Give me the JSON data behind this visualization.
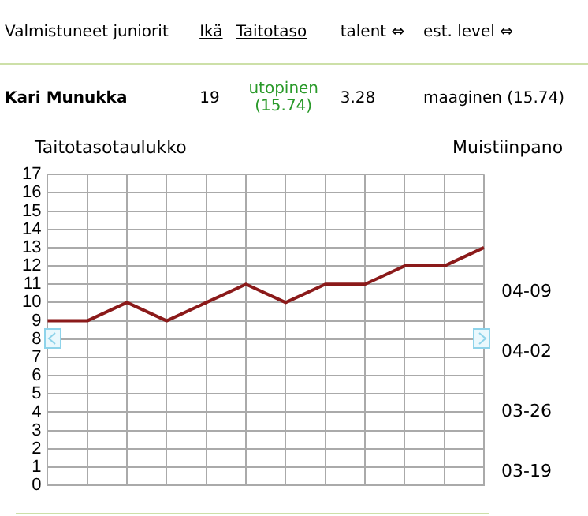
{
  "chart_data": {
    "type": "line",
    "title": "Taitotasotaulukko",
    "categories": [
      null,
      null,
      null,
      null,
      null,
      null,
      null,
      null,
      null,
      null,
      null,
      null
    ],
    "series": [
      {
        "color": "#8b1a1a",
        "values": [
          9,
          9,
          10,
          9,
          10,
          11,
          10,
          11,
          11,
          12,
          12,
          13
        ]
      }
    ],
    "ylim": [
      0,
      17
    ],
    "yticks": [
      0,
      1,
      2,
      3,
      4,
      5,
      6,
      7,
      8,
      9,
      10,
      11,
      12,
      13,
      14,
      15,
      16,
      17
    ],
    "grid": true,
    "legend": false,
    "marker": "none",
    "line_style": "solid",
    "annotations": [
      "Valmistuneet juniorit",
      "Ikä",
      "Taitotaso",
      "talent ⇔",
      "est. level ⇔",
      "Kari Munukka",
      "19",
      "utopinen (15.74)",
      "3.28",
      "maaginen (15.74)",
      "Muistiinpano",
      "04-09",
      "04-02",
      "03-26",
      "03-19"
    ]
  }
}
